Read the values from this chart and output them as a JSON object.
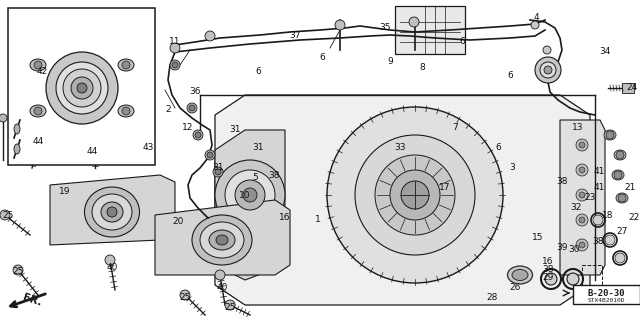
{
  "bg_color": "#ffffff",
  "line_color": "#1a1a1a",
  "gray_light": "#c8c8c8",
  "gray_mid": "#a0a0a0",
  "gray_dark": "#606060",
  "text_color": "#111111",
  "font_size": 6.5,
  "diagram_code": "B-20-30",
  "part_code": "STX4B2010D"
}
